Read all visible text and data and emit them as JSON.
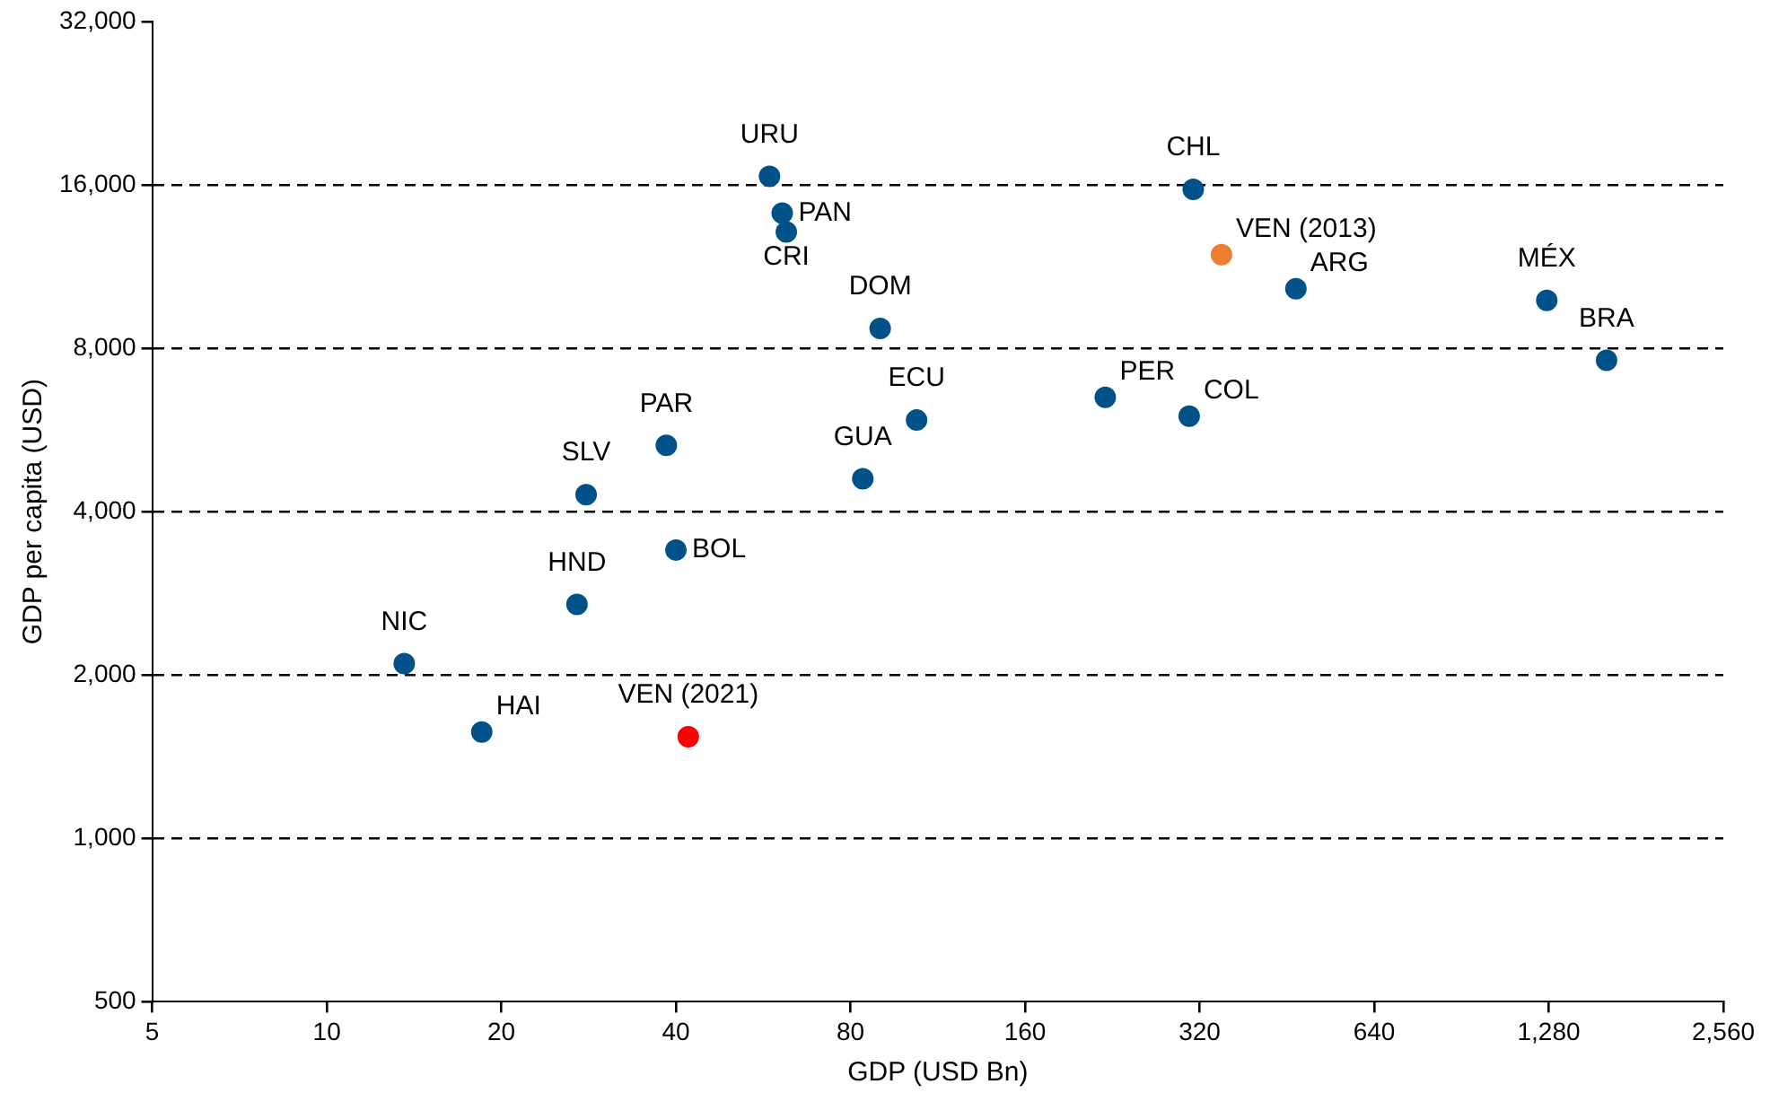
{
  "chart_data": {
    "type": "scatter",
    "xlabel": "GDP (USD Bn)",
    "ylabel": "GDP per capita (USD)",
    "log": "xy",
    "marker": "circle",
    "grid": "y",
    "line_style": "dashed",
    "legend": false,
    "xlim": [
      5,
      2560
    ],
    "xticks": [
      5,
      10,
      20,
      40,
      80,
      160,
      320,
      640,
      {
        "value": 1280,
        "label": "1,280"
      },
      {
        "value": 2560,
        "label": "2,560"
      }
    ],
    "ylim": [
      500,
      32000
    ],
    "yticks": [
      500,
      {
        "value": 1000,
        "label": "1,000"
      },
      {
        "value": 2000,
        "label": "2,000"
      },
      {
        "value": 4000,
        "label": "4,000"
      },
      {
        "value": 8000,
        "label": "8,000"
      },
      {
        "value": 16000,
        "label": "16,000"
      },
      {
        "value": 32000,
        "label": "32,000"
      }
    ],
    "series": [
      {
        "x": [
          58,
          61,
          62,
          90,
          104,
          84,
          38.5,
          28,
          40,
          27,
          13.6,
          18.5,
          42,
          312,
          349,
          469,
          220,
          307,
          1270,
          1610
        ],
        "values": [
          16600,
          14200,
          13100,
          8700,
          5900,
          4600,
          5300,
          4300,
          3400,
          2700,
          2100,
          1570,
          1540,
          15700,
          11900,
          10300,
          6500,
          6000,
          9800,
          7600
        ],
        "colors": [
          "#005288",
          "#005288",
          "#005288",
          "#005288",
          "#005288",
          "#005288",
          "#005288",
          "#005288",
          "#005288",
          "#005288",
          "#005288",
          "#005288",
          "#ff0000",
          "#005288",
          "#ed7d31",
          "#005288",
          "#005288",
          "#005288",
          "#005288",
          "#005288"
        ]
      }
    ],
    "annotations": [
      {
        "text": "URU",
        "x": 58,
        "y": 16600
      },
      {
        "text": "PAN",
        "x": 61,
        "y": 14200
      },
      {
        "text": "CRI",
        "x": 62,
        "y": 13100
      },
      {
        "text": "DOM",
        "x": 90,
        "y": 8700
      },
      {
        "text": "ECU",
        "x": 104,
        "y": 5900
      },
      {
        "text": "GUA",
        "x": 84,
        "y": 4600
      },
      {
        "text": "PAR",
        "x": 38.5,
        "y": 5300
      },
      {
        "text": "SLV",
        "x": 28,
        "y": 4300
      },
      {
        "text": "BOL",
        "x": 40,
        "y": 3400
      },
      {
        "text": "HND",
        "x": 27,
        "y": 2700
      },
      {
        "text": "NIC",
        "x": 13.6,
        "y": 2100
      },
      {
        "text": "HAI",
        "x": 18.5,
        "y": 1570
      },
      {
        "text": "VEN (2021)",
        "x": 42,
        "y": 1540
      },
      {
        "text": "CHL",
        "x": 312,
        "y": 15700
      },
      {
        "text": "VEN (2013)",
        "x": 349,
        "y": 11900
      },
      {
        "text": "ARG",
        "x": 469,
        "y": 10300
      },
      {
        "text": "PER",
        "x": 220,
        "y": 6500
      },
      {
        "text": "COL",
        "x": 307,
        "y": 6000
      },
      {
        "text": "MÉX",
        "x": 1270,
        "y": 9800
      },
      {
        "text": "BRA",
        "x": 1610,
        "y": 7600
      }
    ]
  }
}
